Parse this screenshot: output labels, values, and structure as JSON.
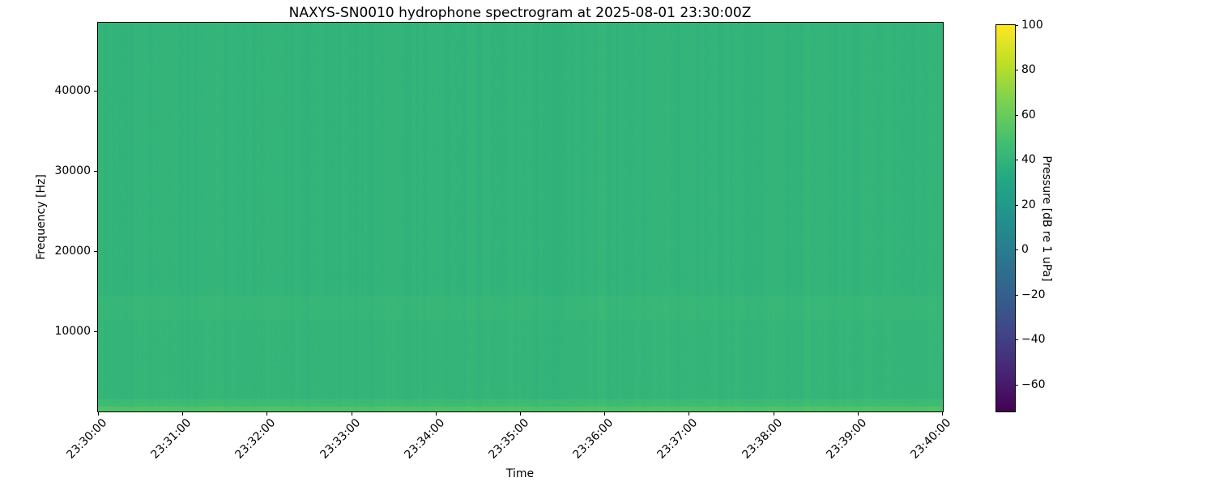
{
  "figure": {
    "background": "#ffffff"
  },
  "chart_data": {
    "type": "heatmap",
    "variant": "spectrogram",
    "title": "NAXYS-SN0010 hydrophone spectrogram at 2025-08-01 23:30:00Z",
    "xlabel": "Time",
    "ylabel": "Frequency [Hz]",
    "x_tick_labels": [
      "23:30:00",
      "23:31:00",
      "23:32:00",
      "23:33:00",
      "23:34:00",
      "23:35:00",
      "23:36:00",
      "23:37:00",
      "23:38:00",
      "23:39:00",
      "23:40:00"
    ],
    "time_start": "23:30:00",
    "time_end": "23:40:00",
    "time_span_seconds": 600,
    "y_ticks": [
      {
        "value": 10000,
        "label": "10000"
      },
      {
        "value": 20000,
        "label": "20000"
      },
      {
        "value": 30000,
        "label": "30000"
      },
      {
        "value": 40000,
        "label": "40000"
      }
    ],
    "ylim": [
      0,
      48500
    ],
    "grid": false,
    "legend": "none",
    "colorbar": {
      "label": "Pressure [dB re 1 uPa]",
      "ticks": [
        {
          "value": 100,
          "label": "100"
        },
        {
          "value": 80,
          "label": "80"
        },
        {
          "value": 60,
          "label": "60"
        },
        {
          "value": 40,
          "label": "40"
        },
        {
          "value": 20,
          "label": "20"
        },
        {
          "value": 0,
          "label": "0"
        },
        {
          "value": -20,
          "label": "−20"
        },
        {
          "value": -40,
          "label": "−40"
        },
        {
          "value": -60,
          "label": "−60"
        }
      ],
      "vmin": -72,
      "vmax": 100,
      "colormap": "viridis",
      "viridis_stops": [
        {
          "t": 0.0,
          "color": "#440154"
        },
        {
          "t": 0.1,
          "color": "#482475"
        },
        {
          "t": 0.2,
          "color": "#414487"
        },
        {
          "t": 0.3,
          "color": "#355f8d"
        },
        {
          "t": 0.4,
          "color": "#2a788e"
        },
        {
          "t": 0.5,
          "color": "#21918c"
        },
        {
          "t": 0.6,
          "color": "#22a884"
        },
        {
          "t": 0.7,
          "color": "#44bf70"
        },
        {
          "t": 0.8,
          "color": "#7ad151"
        },
        {
          "t": 0.9,
          "color": "#bddf26"
        },
        {
          "t": 1.0,
          "color": "#fde725"
        }
      ]
    },
    "band_profile_db": [
      {
        "f_low": 0,
        "f_high": 700,
        "db": 52.0
      },
      {
        "f_low": 700,
        "f_high": 1600,
        "db": 45.5
      },
      {
        "f_low": 1600,
        "f_high": 11500,
        "db": 40.8
      },
      {
        "f_low": 11500,
        "f_high": 14500,
        "db": 42.0
      },
      {
        "f_low": 14500,
        "f_high": 48500,
        "db": 40.0
      }
    ],
    "texture": {
      "column_noise_db": 1.1,
      "row_noise_db": 0.5,
      "pixel_noise_db": 0.8,
      "bright_streak_db": 1.3
    }
  }
}
